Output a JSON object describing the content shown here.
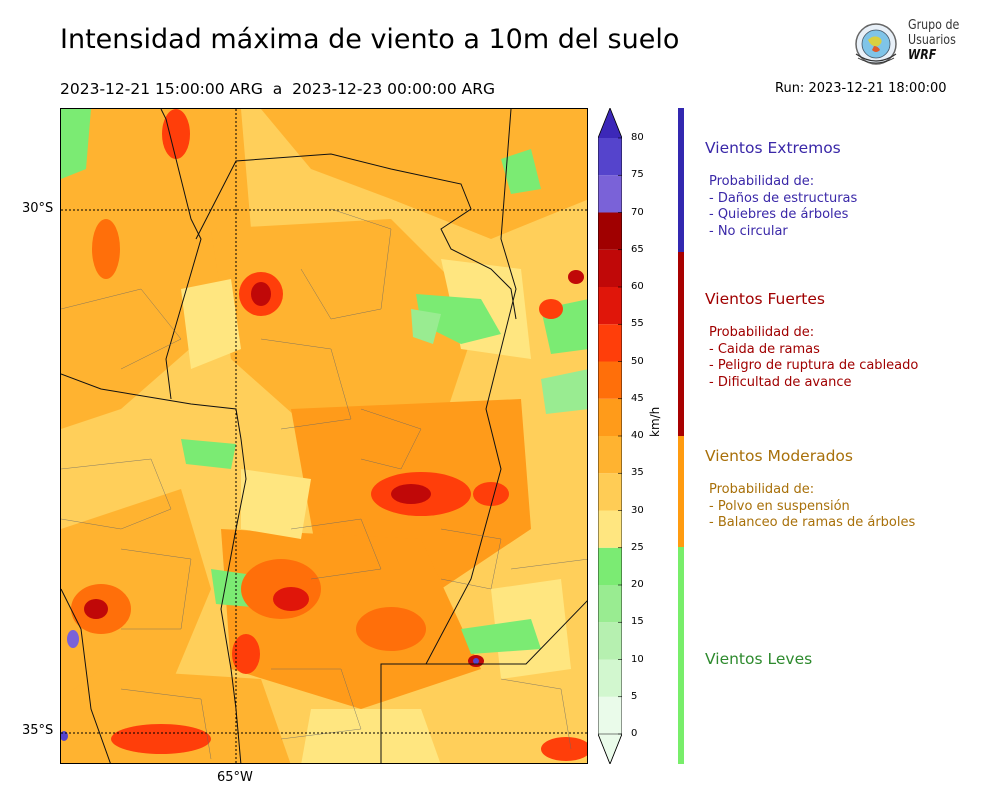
{
  "title": "Intensidad máxima de viento a 10m del suelo",
  "period": "2023-12-21 15:00:00 ARG  a  2023-12-23 00:00:00 ARG",
  "run": "Run: 2023-12-21 18:00:00",
  "logo": {
    "line1": "Grupo de",
    "line2": "Usuarios",
    "line3": "WRF"
  },
  "map": {
    "lat_labels": [
      "30°S",
      "35°S"
    ],
    "lon_labels": [
      "65°W"
    ]
  },
  "colorbar": {
    "unit": "km/h",
    "ticks": [
      "0",
      "5",
      "10",
      "15",
      "20",
      "25",
      "30",
      "35",
      "40",
      "45",
      "50",
      "55",
      "60",
      "65",
      "70",
      "75",
      "80"
    ],
    "colors": [
      "#eafbea",
      "#d2f7cf",
      "#b6f0b0",
      "#99ec91",
      "#7beb73",
      "#ffe680",
      "#ffcc55",
      "#ffb330",
      "#ff9b1a",
      "#ff6f0a",
      "#ff3e0a",
      "#e0160a",
      "#c00808",
      "#a00000",
      "#7a62d8",
      "#5544cc",
      "#3c28b8"
    ],
    "extend_color": "#3c28b8"
  },
  "categories": [
    {
      "title": "Vientos Extremos",
      "color": "#3a28a8",
      "bar_color": "#3228b0",
      "header": "Probabilidad de:",
      "items": [
        "- Daños de estructuras",
        "- Quiebres de árboles",
        "- No circular"
      ]
    },
    {
      "title": "Vientos Fuertes",
      "color": "#a00000",
      "bar_color": "#a80000",
      "header": "Probabilidad de:",
      "items": [
        "- Caida de ramas",
        "- Peligro de ruptura de cableado",
        "- Dificultad de avance"
      ]
    },
    {
      "title": "Vientos Moderados",
      "color": "#a8700a",
      "bar_color": "#ff9b10",
      "header": "Probabilidad de:",
      "items": [
        "- Polvo en suspensión",
        "- Balanceo de ramas de árboles"
      ]
    },
    {
      "title": "Vientos Leves",
      "color": "#2e8a2e",
      "bar_color": "#78ee6a"
    }
  ]
}
